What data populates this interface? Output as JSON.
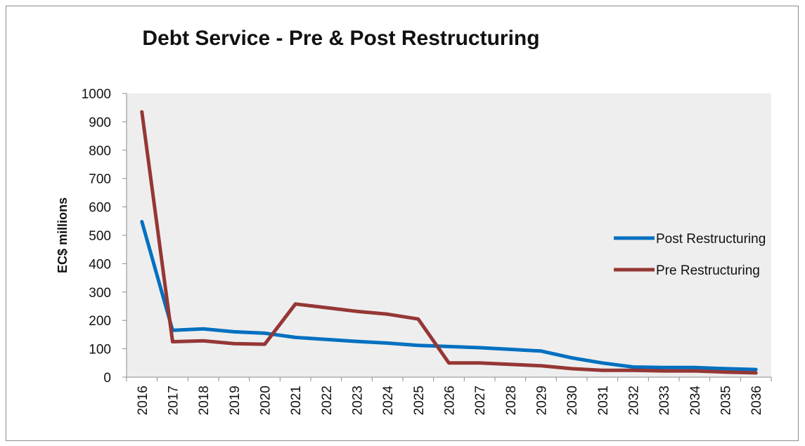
{
  "chart_data": {
    "type": "line",
    "title": "Debt Service - Pre & Post Restructuring",
    "xlabel": "",
    "ylabel": "EC$ millions",
    "ylim": [
      0,
      1000
    ],
    "yticks": [
      0,
      100,
      200,
      300,
      400,
      500,
      600,
      700,
      800,
      900,
      1000
    ],
    "categories": [
      "2016",
      "2017",
      "2018",
      "2019",
      "2020",
      "2021",
      "2022",
      "2023",
      "2024",
      "2025",
      "2026",
      "2027",
      "2028",
      "2029",
      "2030",
      "2031",
      "2032",
      "2033",
      "2034",
      "2035",
      "2036"
    ],
    "grid": false,
    "legend_position": "right",
    "series": [
      {
        "name": "Post Restructuring",
        "color": "#0070c0",
        "values": [
          548,
          165,
          170,
          160,
          155,
          140,
          133,
          126,
          120,
          112,
          108,
          104,
          98,
          92,
          68,
          50,
          36,
          34,
          34,
          30,
          27
        ]
      },
      {
        "name": "Pre Restructuring",
        "color": "#953735",
        "values": [
          935,
          125,
          128,
          118,
          116,
          258,
          245,
          232,
          222,
          205,
          50,
          50,
          45,
          40,
          30,
          24,
          24,
          22,
          22,
          18,
          15
        ]
      }
    ]
  }
}
